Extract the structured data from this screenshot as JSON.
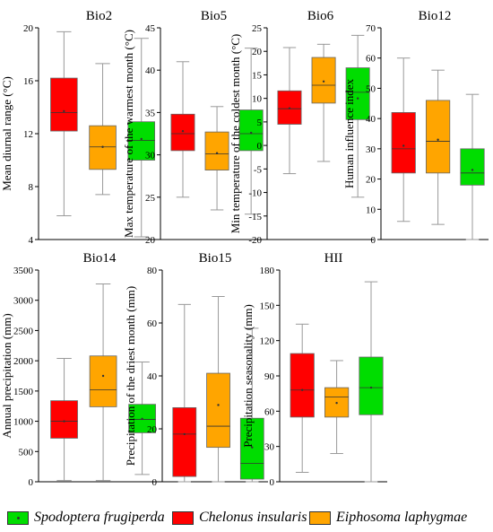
{
  "colors": {
    "Spodoptera frugiperda": "#00dd00",
    "Chelonus insularis": "#ff0000",
    "Eiphosoma laphygmae": "#ffa500"
  },
  "legend": [
    {
      "name": "Spodoptera frugiperda",
      "color": "#00dd00"
    },
    {
      "name": "Chelonus insularis",
      "color": "#ff0000"
    },
    {
      "name": "Eiphosoma laphygmae",
      "color": "#ffa500"
    }
  ],
  "chart_data": [
    {
      "type": "box",
      "title": "Bio2",
      "ylabel": "Mean diurnal range (°C)",
      "ylim": [
        4,
        20
      ],
      "yticks": [
        4,
        8,
        12,
        16,
        20
      ],
      "boxes": [
        {
          "group": "Chelonus insularis",
          "min": 5.8,
          "q1": 12.2,
          "median": 13.6,
          "q3": 16.2,
          "max": 19.7,
          "mean": 13.7
        },
        {
          "group": "Eiphosoma laphygmae",
          "min": 7.4,
          "q1": 9.3,
          "median": 11.0,
          "q3": 12.6,
          "max": 17.3,
          "mean": 11.0
        },
        {
          "group": "Spodoptera frugiperda",
          "min": 4.2,
          "q1": 10.0,
          "median": 11.5,
          "q3": 12.9,
          "max": 19.2,
          "mean": 11.6
        }
      ]
    },
    {
      "type": "box",
      "title": "Bio5",
      "ylabel": "Max temperature of the warmest month (°C)",
      "ylim": [
        20,
        45
      ],
      "yticks": [
        20,
        25,
        30,
        35,
        40,
        45
      ],
      "boxes": [
        {
          "group": "Chelonus insularis",
          "min": 25.0,
          "q1": 30.5,
          "median": 32.5,
          "q3": 34.8,
          "max": 41.0,
          "mean": 32.8
        },
        {
          "group": "Eiphosoma laphygmae",
          "min": 23.5,
          "q1": 28.2,
          "median": 30.1,
          "q3": 32.7,
          "max": 35.7,
          "mean": 30.2
        },
        {
          "group": "Spodoptera frugiperda",
          "min": 23.0,
          "q1": 30.5,
          "median": 32.5,
          "q3": 35.3,
          "max": 42.6,
          "mean": 32.6
        }
      ]
    },
    {
      "type": "box",
      "title": "Bio6",
      "ylabel": "Min temperature of the coldest month (°C)",
      "ylim": [
        -20,
        25
      ],
      "yticks": [
        -20,
        -15,
        -10,
        -5,
        0,
        5,
        10,
        15,
        20,
        25
      ],
      "boxes": [
        {
          "group": "Chelonus insularis",
          "min": -6.0,
          "q1": 4.5,
          "median": 7.8,
          "q3": 11.6,
          "max": 20.8,
          "mean": 7.9
        },
        {
          "group": "Eiphosoma laphygmae",
          "min": -3.4,
          "q1": 9.0,
          "median": 12.8,
          "q3": 18.7,
          "max": 21.5,
          "mean": 13.6
        },
        {
          "group": "Spodoptera frugiperda",
          "min": -11.0,
          "q1": 5.5,
          "median": 11.3,
          "q3": 16.5,
          "max": 23.4,
          "mean": 10.0
        }
      ]
    },
    {
      "type": "box",
      "title": "Bio12",
      "ylabel": "Human influence index",
      "ylim": [
        0,
        70
      ],
      "yticks": [
        0,
        10,
        20,
        30,
        40,
        50,
        60,
        70
      ],
      "boxes": [
        {
          "group": "Chelonus insularis",
          "min": 6,
          "q1": 22,
          "median": 30,
          "q3": 42,
          "max": 60,
          "mean": 31
        },
        {
          "group": "Eiphosoma laphygmae",
          "min": 5,
          "q1": 22,
          "median": 32.5,
          "q3": 46,
          "max": 56,
          "mean": 33
        },
        {
          "group": "Spodoptera frugiperda",
          "min": 0,
          "q1": 18,
          "median": 22,
          "q3": 30,
          "max": 48,
          "mean": 23
        }
      ]
    },
    {
      "type": "box",
      "title": "Bio14",
      "ylabel": "Annual precipitation (mm)",
      "ylim": [
        0,
        3500
      ],
      "yticks": [
        0,
        500,
        1000,
        1500,
        2000,
        2500,
        3000,
        3500
      ],
      "boxes": [
        {
          "group": "Chelonus insularis",
          "min": 20,
          "q1": 720,
          "median": 1000,
          "q3": 1340,
          "max": 2040,
          "mean": 1000
        },
        {
          "group": "Eiphosoma laphygmae",
          "min": 20,
          "q1": 1240,
          "median": 1520,
          "q3": 2080,
          "max": 3270,
          "mean": 1750
        },
        {
          "group": "Spodoptera frugiperda",
          "min": 120,
          "q1": 810,
          "median": 1030,
          "q3": 1280,
          "max": 1980,
          "mean": 1040
        }
      ]
    },
    {
      "type": "box",
      "title": "Bio15",
      "ylabel": "Precipitation of the driest month (mm)",
      "ylim": [
        0,
        80
      ],
      "yticks": [
        0,
        20,
        40,
        60,
        80
      ],
      "boxes": [
        {
          "group": "Chelonus insularis",
          "min": 0,
          "q1": 2,
          "median": 18,
          "q3": 28,
          "max": 67,
          "mean": 18
        },
        {
          "group": "Eiphosoma laphygmae",
          "min": 0,
          "q1": 13,
          "median": 21,
          "q3": 41,
          "max": 70,
          "mean": 29
        },
        {
          "group": "Spodoptera frugiperda",
          "min": 0,
          "q1": 1,
          "median": 7,
          "q3": 24,
          "max": 58,
          "mean": 13
        }
      ]
    },
    {
      "type": "box",
      "title": "HII",
      "ylabel": "Precipitation seasonality (mm)",
      "ylim": [
        0,
        180
      ],
      "yticks": [
        0,
        30,
        60,
        90,
        120,
        150,
        180
      ],
      "boxes": [
        {
          "group": "Chelonus insularis",
          "min": 8,
          "q1": 55,
          "median": 78,
          "q3": 109,
          "max": 134,
          "mean": 78
        },
        {
          "group": "Eiphosoma laphygmae",
          "min": 24,
          "q1": 55,
          "median": 72,
          "q3": 80,
          "max": 103,
          "mean": 67
        },
        {
          "group": "Spodoptera frugiperda",
          "min": 0,
          "q1": 57,
          "median": 80,
          "q3": 106,
          "max": 170,
          "mean": 80
        }
      ]
    }
  ]
}
